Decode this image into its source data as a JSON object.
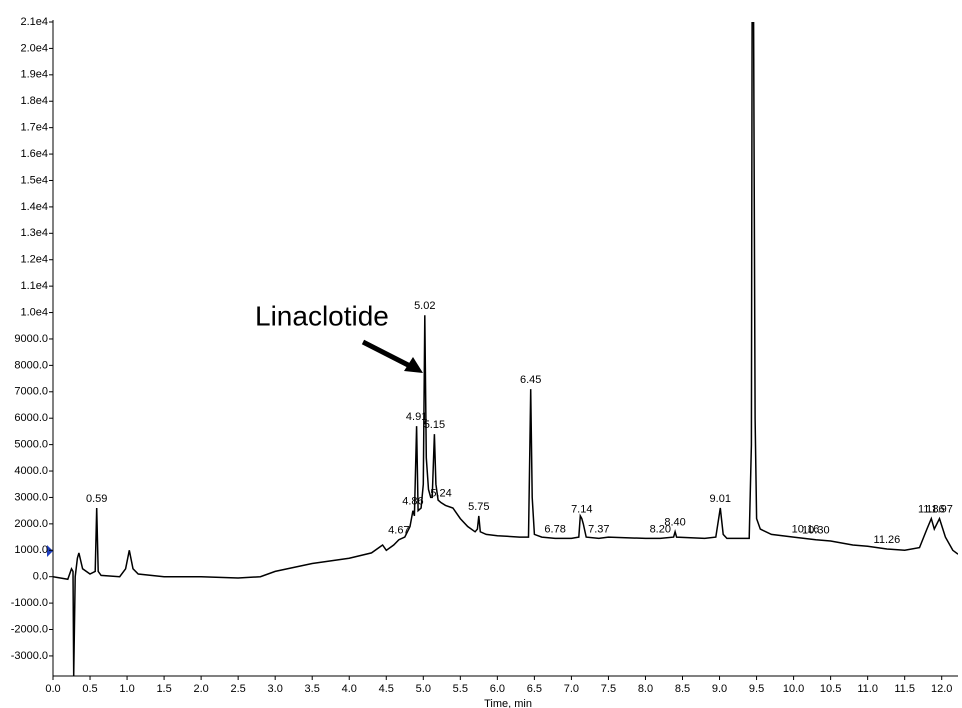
{
  "chart_data": {
    "type": "line",
    "xlabel": "Time, min",
    "annotation": "Linaclotide",
    "color": "#000000",
    "x": [
      0.0,
      0.2,
      0.25,
      0.27,
      0.28,
      0.3,
      0.33,
      0.35,
      0.4,
      0.5,
      0.57,
      0.59,
      0.61,
      0.65,
      0.9,
      0.98,
      1.03,
      1.08,
      1.15,
      1.5,
      2.0,
      2.5,
      2.8,
      3.0,
      3.5,
      4.0,
      4.3,
      4.45,
      4.5,
      4.6,
      4.67,
      4.75,
      4.82,
      4.86,
      4.88,
      4.91,
      4.93,
      4.97,
      5.0,
      5.02,
      5.04,
      5.07,
      5.1,
      5.12,
      5.15,
      5.17,
      5.2,
      5.24,
      5.3,
      5.4,
      5.5,
      5.6,
      5.7,
      5.73,
      5.75,
      5.77,
      5.85,
      6.0,
      6.3,
      6.42,
      6.44,
      6.45,
      6.47,
      6.5,
      6.6,
      6.78,
      7.0,
      7.1,
      7.12,
      7.14,
      7.16,
      7.2,
      7.37,
      7.5,
      8.0,
      8.2,
      8.38,
      8.4,
      8.42,
      8.8,
      8.95,
      9.01,
      9.05,
      9.1,
      9.4,
      9.43,
      9.44,
      9.46,
      9.48,
      9.5,
      9.55,
      9.7,
      10.0,
      10.3,
      10.5,
      10.8,
      11.0,
      11.26,
      11.5,
      11.7,
      11.8,
      11.86,
      11.9,
      11.97,
      12.05,
      12.15,
      12.22
    ],
    "values": [
      0,
      -100,
      300,
      200,
      -3750,
      0,
      700,
      900,
      300,
      100,
      200,
      2600,
      200,
      50,
      0,
      300,
      1000,
      300,
      100,
      0,
      0,
      -50,
      0,
      200,
      500,
      700,
      900,
      1200,
      1000,
      1200,
      1400,
      1500,
      1900,
      2500,
      2300,
      5700,
      2500,
      2600,
      3500,
      9900,
      4500,
      3300,
      3000,
      3000,
      5400,
      3500,
      2900,
      2800,
      2700,
      2600,
      2200,
      1900,
      1700,
      1800,
      2300,
      1700,
      1600,
      1550,
      1500,
      1500,
      5000,
      7100,
      3000,
      1600,
      1500,
      1450,
      1450,
      1500,
      2300,
      2200,
      2000,
      1500,
      1450,
      1500,
      1450,
      1450,
      1500,
      1700,
      1500,
      1450,
      1500,
      2600,
      1600,
      1450,
      1450,
      5000,
      21000,
      21000,
      6000,
      2200,
      1800,
      1600,
      1500,
      1400,
      1350,
      1200,
      1150,
      1050,
      1000,
      1100,
      1800,
      2200,
      1800,
      2200,
      1500,
      1000,
      850
    ],
    "peaks": [
      {
        "x": 0.59,
        "y": 2600,
        "label": "0.59"
      },
      {
        "x": 4.67,
        "y": 1400,
        "label": "4.67"
      },
      {
        "x": 4.86,
        "y": 2500,
        "label": "4.86"
      },
      {
        "x": 4.91,
        "y": 5700,
        "label": "4.91"
      },
      {
        "x": 5.02,
        "y": 9900,
        "label": "5.02"
      },
      {
        "x": 5.15,
        "y": 5400,
        "label": "5.15"
      },
      {
        "x": 5.24,
        "y": 2800,
        "label": "5.24"
      },
      {
        "x": 5.75,
        "y": 2300,
        "label": "5.75"
      },
      {
        "x": 6.45,
        "y": 7100,
        "label": "6.45"
      },
      {
        "x": 6.78,
        "y": 1450,
        "label": "6.78"
      },
      {
        "x": 7.14,
        "y": 2200,
        "label": "7.14"
      },
      {
        "x": 7.37,
        "y": 1450,
        "label": "7.37"
      },
      {
        "x": 8.2,
        "y": 1450,
        "label": "8.20"
      },
      {
        "x": 8.4,
        "y": 1700,
        "label": "8.40"
      },
      {
        "x": 9.01,
        "y": 2600,
        "label": "9.01"
      },
      {
        "x": 10.16,
        "y": 1450,
        "label": "10.16"
      },
      {
        "x": 10.3,
        "y": 1400,
        "label": "10.30"
      },
      {
        "x": 11.26,
        "y": 1050,
        "label": "11.26"
      },
      {
        "x": 11.86,
        "y": 2200,
        "label": "11.86"
      },
      {
        "x": 11.97,
        "y": 2200,
        "label": "11.97"
      }
    ],
    "xlim": [
      0,
      12.22
    ],
    "ylim": [
      -3760,
      21000
    ],
    "xticks": [
      {
        "value": 0,
        "label": "0.0"
      },
      {
        "value": 0.5,
        "label": "0.5"
      },
      {
        "value": 1,
        "label": "1.0"
      },
      {
        "value": 1.5,
        "label": "1.5"
      },
      {
        "value": 2,
        "label": "2.0"
      },
      {
        "value": 2.5,
        "label": "2.5"
      },
      {
        "value": 3,
        "label": "3.0"
      },
      {
        "value": 3.5,
        "label": "3.5"
      },
      {
        "value": 4,
        "label": "4.0"
      },
      {
        "value": 4.5,
        "label": "4.5"
      },
      {
        "value": 5,
        "label": "5.0"
      },
      {
        "value": 5.5,
        "label": "5.5"
      },
      {
        "value": 6,
        "label": "6.0"
      },
      {
        "value": 6.5,
        "label": "6.5"
      },
      {
        "value": 7,
        "label": "7.0"
      },
      {
        "value": 7.5,
        "label": "7.5"
      },
      {
        "value": 8,
        "label": "8.0"
      },
      {
        "value": 8.5,
        "label": "8.5"
      },
      {
        "value": 9,
        "label": "9.0"
      },
      {
        "value": 9.5,
        "label": "9.5"
      },
      {
        "value": 10,
        "label": "10.0"
      },
      {
        "value": 10.5,
        "label": "10.5"
      },
      {
        "value": 11,
        "label": "11.0"
      },
      {
        "value": 11.5,
        "label": "11.5"
      },
      {
        "value": 12,
        "label": "12.0"
      }
    ],
    "yticks": [
      {
        "value": -3000,
        "label": "-3000.0"
      },
      {
        "value": -2000,
        "label": "-2000.0"
      },
      {
        "value": -1000,
        "label": "-1000.0"
      },
      {
        "value": 0,
        "label": "0.0"
      },
      {
        "value": 1000,
        "label": "1000.0"
      },
      {
        "value": 2000,
        "label": "2000.0"
      },
      {
        "value": 3000,
        "label": "3000.0"
      },
      {
        "value": 4000,
        "label": "4000.0"
      },
      {
        "value": 5000,
        "label": "5000.0"
      },
      {
        "value": 6000,
        "label": "6000.0"
      },
      {
        "value": 7000,
        "label": "7000.0"
      },
      {
        "value": 8000,
        "label": "8000.0"
      },
      {
        "value": 9000,
        "label": "9000.0"
      },
      {
        "value": 10000,
        "label": "1.0e4"
      },
      {
        "value": 11000,
        "label": "1.1e4"
      },
      {
        "value": 12000,
        "label": "1.2e4"
      },
      {
        "value": 13000,
        "label": "1.3e4"
      },
      {
        "value": 14000,
        "label": "1.4e4"
      },
      {
        "value": 15000,
        "label": "1.5e4"
      },
      {
        "value": 16000,
        "label": "1.6e4"
      },
      {
        "value": 17000,
        "label": "1.7e4"
      },
      {
        "value": 18000,
        "label": "1.8e4"
      },
      {
        "value": 19000,
        "label": "1.9e4"
      },
      {
        "value": 20000,
        "label": "2.0e4"
      },
      {
        "value": 21000,
        "label": "2.1e4"
      }
    ]
  }
}
